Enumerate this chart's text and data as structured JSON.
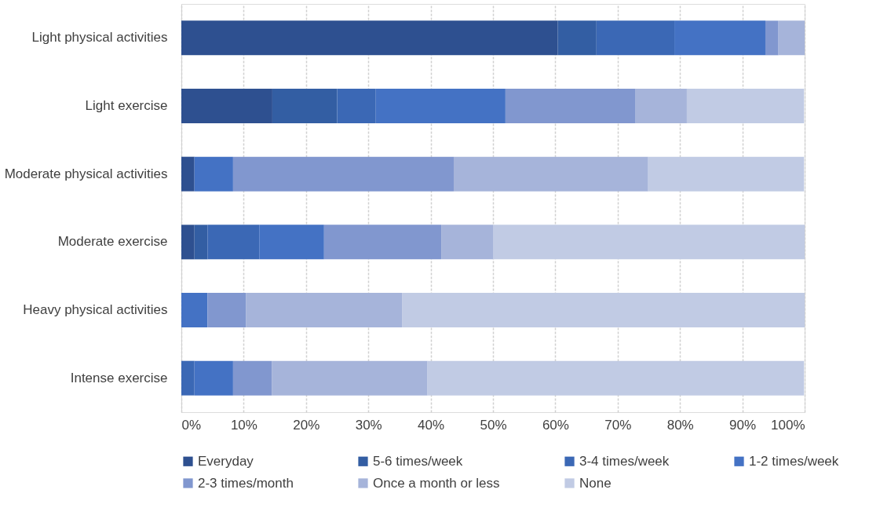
{
  "chart_data": {
    "type": "bar",
    "orientation": "horizontal",
    "stacked": true,
    "categories": [
      "Light physical activities",
      "Light exercise",
      "Moderate physical activities",
      "Moderate exercise",
      "Heavy physical activities",
      "Intense exercise"
    ],
    "series": [
      {
        "name": "Everyday",
        "color": "#2e5090",
        "values": [
          60.4,
          14.6,
          2.1,
          2.1,
          0,
          0
        ]
      },
      {
        "name": "5-6 times/week",
        "color": "#335ea3",
        "values": [
          6.2,
          10.4,
          0,
          2.1,
          0,
          0
        ]
      },
      {
        "name": "3-4 times/week",
        "color": "#3b68b5",
        "values": [
          12.5,
          6.2,
          0,
          8.3,
          0,
          2.1
        ]
      },
      {
        "name": "1-2 times/week",
        "color": "#4472c4",
        "values": [
          14.6,
          20.8,
          6.2,
          10.4,
          4.2,
          6.2
        ]
      },
      {
        "name": "2-3 times/month",
        "color": "#8197cf",
        "values": [
          2.1,
          20.8,
          35.4,
          18.8,
          6.2,
          6.2
        ]
      },
      {
        "name": "Once a month or less",
        "color": "#a6b4da",
        "values": [
          4.2,
          8.3,
          31.2,
          8.3,
          25.0,
          25.0
        ]
      },
      {
        "name": "None",
        "color": "#c1cbe4",
        "values": [
          0,
          18.8,
          25.0,
          50.0,
          64.6,
          60.4
        ]
      }
    ],
    "xlim": [
      0,
      100
    ],
    "xticks": [
      {
        "value": 0,
        "label": "0%"
      },
      {
        "value": 10,
        "label": "10%"
      },
      {
        "value": 20,
        "label": "20%"
      },
      {
        "value": 30,
        "label": "30%"
      },
      {
        "value": 40,
        "label": "40%"
      },
      {
        "value": 50,
        "label": "50%"
      },
      {
        "value": 60,
        "label": "60%"
      },
      {
        "value": 70,
        "label": "70%"
      },
      {
        "value": 80,
        "label": "80%"
      },
      {
        "value": 90,
        "label": "90%"
      },
      {
        "value": 100,
        "label": "100%"
      }
    ],
    "grid": "x",
    "legend": "bottom"
  }
}
